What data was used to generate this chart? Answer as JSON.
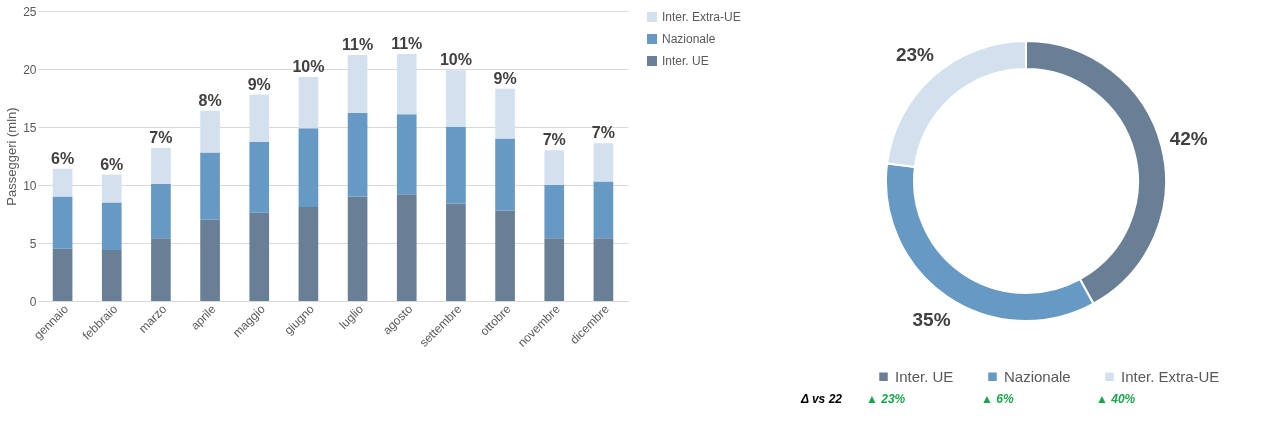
{
  "chart_data": [
    {
      "type": "bar",
      "ylabel": "Passeggeri (mln)",
      "stacked": true,
      "categories": [
        "gennaio",
        "febbraio",
        "marzo",
        "aprile",
        "maggio",
        "giugno",
        "luglio",
        "agosto",
        "settembre",
        "ottobre",
        "novembre",
        "dicembre"
      ],
      "series": [
        {
          "name": "Inter. UE",
          "color": "#687f96",
          "values": [
            4.5,
            4.4,
            5.4,
            7.0,
            7.6,
            8.1,
            9.0,
            9.2,
            8.4,
            7.8,
            5.4,
            5.4
          ]
        },
        {
          "name": "Nazionale",
          "color": "#6699c4",
          "values": [
            4.5,
            4.1,
            4.7,
            5.8,
            6.1,
            6.8,
            7.2,
            6.9,
            6.6,
            6.2,
            4.6,
            4.9
          ]
        },
        {
          "name": "Inter. Extra-UE",
          "color": "#d3e1ef",
          "values": [
            2.4,
            2.4,
            3.1,
            3.6,
            4.1,
            4.4,
            5.0,
            5.2,
            4.9,
            4.3,
            3.0,
            3.3
          ]
        }
      ],
      "annotations": [
        {
          "text": "6%",
          "x": "gennaio",
          "y": 11.4
        },
        {
          "text": "6%",
          "x": "febbraio",
          "y": 10.9
        },
        {
          "text": "7%",
          "x": "marzo",
          "y": 13.2
        },
        {
          "text": "8%",
          "x": "aprile",
          "y": 16.4
        },
        {
          "text": "9%",
          "x": "maggio",
          "y": 17.8
        },
        {
          "text": "10%",
          "x": "giugno",
          "y": 19.3
        },
        {
          "text": "11%",
          "x": "luglio",
          "y": 21.2
        },
        {
          "text": "11%",
          "x": "agosto",
          "y": 21.3
        },
        {
          "text": "10%",
          "x": "settembre",
          "y": 19.9
        },
        {
          "text": "9%",
          "x": "ottobre",
          "y": 18.3
        },
        {
          "text": "7%",
          "x": "novembre",
          "y": 13.0
        },
        {
          "text": "7%",
          "x": "dicembre",
          "y": 13.6
        }
      ],
      "ylim": [
        0,
        25
      ],
      "yticks": [
        0,
        5,
        10,
        15,
        20,
        25
      ],
      "grid": "y",
      "legend": "right"
    },
    {
      "type": "donut",
      "categories": [
        "Inter. UE",
        "Nazionale",
        "Inter. Extra-UE"
      ],
      "values": [
        42,
        35,
        23
      ],
      "colors": [
        "#687f96",
        "#6699c4",
        "#d3e1ef"
      ],
      "value_labels": [
        "42%",
        "35%",
        "23%"
      ],
      "legend": "bottom",
      "annotations": [
        "Δ vs 22",
        "▲ 23%",
        "▲ 6%",
        "▲ 40%"
      ]
    }
  ]
}
